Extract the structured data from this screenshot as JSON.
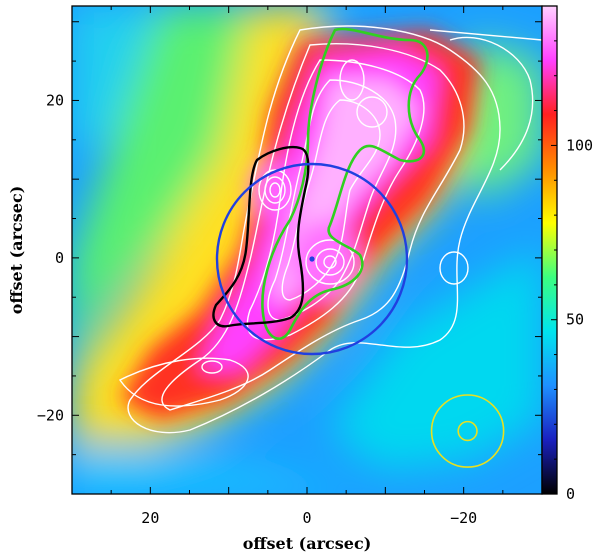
{
  "chart_data": {
    "type": "heatmap",
    "title": "",
    "xlabel": "offset (arcsec)",
    "ylabel": "offset (arcsec)",
    "xlim": [
      30,
      -30
    ],
    "ylim": [
      -30,
      32
    ],
    "x_ticks": [
      20,
      0,
      -20
    ],
    "y_ticks": [
      20,
      0,
      -20
    ],
    "x_tick_labels": [
      "20",
      "0",
      "−20"
    ],
    "y_tick_labels": [
      "20",
      "0",
      "−20"
    ],
    "colorbar": {
      "range": [
        0,
        140
      ],
      "ticks": [
        0,
        50,
        100
      ],
      "tick_labels": [
        "0",
        "50",
        "100"
      ],
      "colors": [
        "#000000",
        "#1a20c0",
        "#1e90ff",
        "#00e5ee",
        "#3cff80",
        "#ffff00",
        "#ff8c00",
        "#ff2020",
        "#ff40ff",
        "#ffd0ff"
      ]
    },
    "blue_circle": {
      "center": [
        0,
        0
      ],
      "radius": 12
    },
    "blue_center_marker": [
      0,
      0
    ],
    "beam": {
      "center": [
        -20.5,
        -22
      ],
      "inner_radius": 1.2,
      "outer_radius": 4.6,
      "color": "#e8e020"
    },
    "emission_peaks": [
      {
        "x": -3,
        "y": 2,
        "value": 140
      },
      {
        "x": 5,
        "y": 8,
        "value": 135
      },
      {
        "x": -8,
        "y": 17,
        "value": 140
      },
      {
        "x": -12,
        "y": 24,
        "value": 132
      }
    ],
    "contours": {
      "white": "multiple-level emission contours",
      "green": "single highlighted level",
      "black": "single outlined region"
    },
    "grid": false
  }
}
